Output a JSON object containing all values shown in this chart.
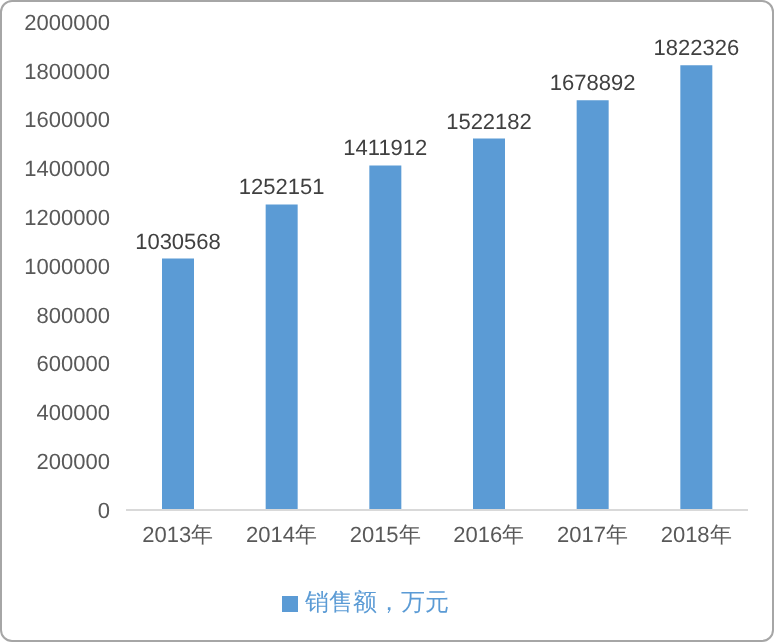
{
  "chart_data": {
    "type": "bar",
    "categories": [
      "2013年",
      "2014年",
      "2015年",
      "2016年",
      "2017年",
      "2018年"
    ],
    "series": [
      {
        "name": "销售额，万元",
        "color": "#5b9bd5",
        "values": [
          1030568,
          1252151,
          1411912,
          1522182,
          1678892,
          1822326
        ]
      }
    ],
    "ylim": [
      0,
      2000000
    ],
    "yticks": [
      0,
      200000,
      400000,
      600000,
      800000,
      1000000,
      1200000,
      1400000,
      1600000,
      1800000,
      2000000
    ],
    "grid": false,
    "legend": "bottom",
    "data_labels": true
  }
}
